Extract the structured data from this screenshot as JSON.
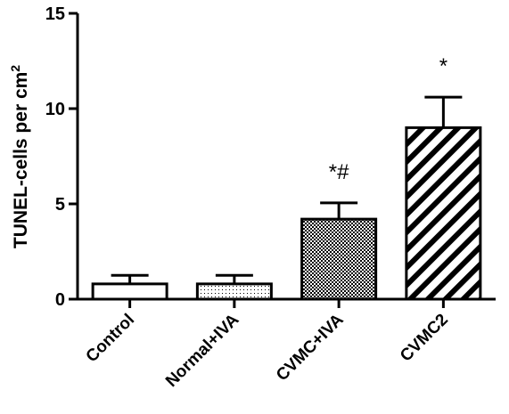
{
  "chart_data": {
    "type": "bar",
    "categories": [
      "Control",
      "Normal+IVA",
      "CVMC+IVA",
      "CVMC2"
    ],
    "values": [
      0.8,
      0.8,
      4.2,
      9.0
    ],
    "error_upper": [
      1.25,
      1.25,
      5.05,
      10.6
    ],
    "annotations": [
      "",
      "",
      "*#",
      "*"
    ],
    "patterns": [
      "solid-white",
      "dotted",
      "checkered",
      "diagonal-stripes"
    ],
    "ylabel": "TUNEL-cells per cm",
    "ylabel_superscript": "2",
    "yticks": [
      "0",
      "5",
      "10",
      "15"
    ],
    "ylim": [
      0,
      15
    ],
    "xlabel": "",
    "title": "",
    "grid": false,
    "bar_fill": "#ffffff",
    "stroke_color": "#000000"
  }
}
